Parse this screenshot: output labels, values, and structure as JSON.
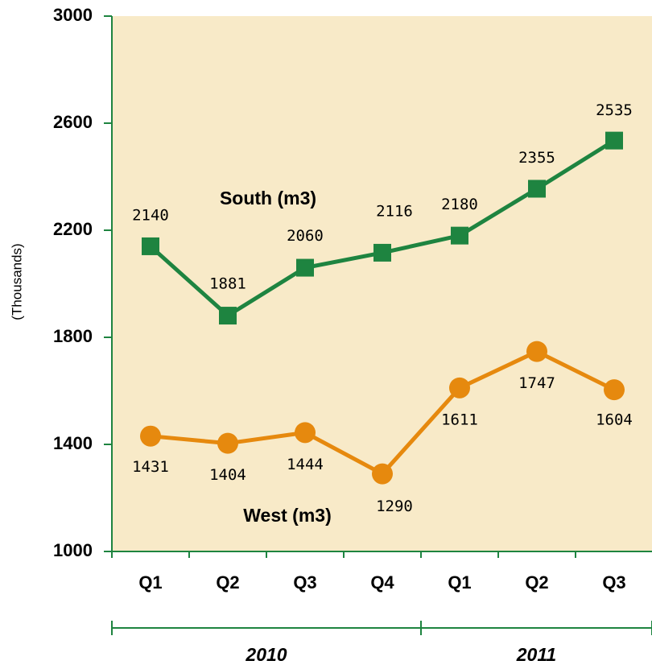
{
  "chart_data": {
    "type": "line",
    "y_axis_label": "(Thousands)",
    "categories": [
      "Q1",
      "Q2",
      "Q3",
      "Q4",
      "Q1",
      "Q2",
      "Q3"
    ],
    "groups": [
      "2010",
      "2011"
    ],
    "series": [
      {
        "name": "South (m3)",
        "color": "#1e8440",
        "marker": "square",
        "values": [
          2140,
          1881,
          2060,
          2116,
          2180,
          2355,
          2535
        ]
      },
      {
        "name": "West (m3)",
        "color": "#e6890e",
        "marker": "circle",
        "values": [
          1431,
          1404,
          1444,
          1290,
          1611,
          1747,
          1604
        ]
      }
    ],
    "ylim": [
      1000,
      3000
    ],
    "yticks": [
      1000,
      1400,
      1800,
      2200,
      2600,
      3000
    ],
    "background": "#f8eac8"
  }
}
